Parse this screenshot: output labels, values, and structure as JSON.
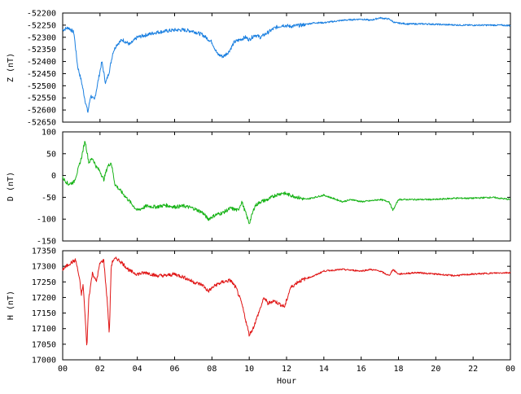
{
  "chart_data": [
    {
      "type": "line",
      "ylabel": "Z (nT)",
      "ylim": [
        -52650,
        -52200
      ],
      "yticks": [
        -52200,
        -52250,
        -52300,
        -52350,
        -52400,
        -52450,
        -52500,
        -52550,
        -52600,
        -52650
      ],
      "color": "#1a7fe0",
      "x": [
        0,
        0.3,
        0.6,
        0.8,
        1.0,
        1.2,
        1.35,
        1.5,
        1.7,
        1.9,
        2.1,
        2.3,
        2.5,
        2.7,
        2.9,
        3.2,
        3.6,
        4.0,
        4.5,
        5.0,
        5.5,
        6.0,
        6.5,
        7.0,
        7.5,
        8.0,
        8.3,
        8.6,
        8.9,
        9.2,
        9.5,
        9.8,
        10.0,
        10.3,
        10.6,
        11.0,
        11.4,
        11.8,
        12.2,
        12.8,
        13.5,
        14.0,
        15.0,
        16.0,
        16.5,
        17.0,
        17.5,
        17.8,
        18.5,
        19.5,
        20.5,
        21.5,
        22.5,
        23.5,
        24.0
      ],
      "y": [
        -52270,
        -52260,
        -52280,
        -52420,
        -52480,
        -52560,
        -52610,
        -52540,
        -52560,
        -52480,
        -52400,
        -52490,
        -52440,
        -52360,
        -52330,
        -52310,
        -52330,
        -52300,
        -52290,
        -52280,
        -52275,
        -52270,
        -52270,
        -52275,
        -52290,
        -52320,
        -52370,
        -52380,
        -52360,
        -52320,
        -52310,
        -52300,
        -52310,
        -52290,
        -52300,
        -52280,
        -52260,
        -52250,
        -52255,
        -52250,
        -52240,
        -52240,
        -52230,
        -52225,
        -52230,
        -52220,
        -52225,
        -52240,
        -52245,
        -52245,
        -52248,
        -52250,
        -52250,
        -52250,
        -52252
      ]
    },
    {
      "type": "line",
      "ylabel": "D (nT)",
      "ylim": [
        -150,
        100
      ],
      "yticks": [
        100,
        50,
        0,
        -50,
        -100,
        -150
      ],
      "color": "#17b317",
      "x": [
        0,
        0.3,
        0.6,
        0.8,
        1.0,
        1.2,
        1.4,
        1.6,
        1.8,
        2.0,
        2.2,
        2.4,
        2.6,
        2.8,
        3.0,
        3.3,
        3.6,
        4.0,
        4.5,
        5.0,
        5.5,
        6.0,
        6.5,
        7.0,
        7.5,
        7.8,
        8.2,
        8.6,
        9.0,
        9.4,
        9.6,
        9.8,
        10.0,
        10.3,
        10.6,
        11.0,
        11.4,
        11.8,
        12.2,
        12.6,
        13.0,
        13.5,
        14.0,
        15.0,
        15.5,
        16.0,
        16.5,
        17.0,
        17.5,
        17.7,
        18.0,
        19.0,
        20.0,
        21.0,
        22.0,
        23.0,
        24.0
      ],
      "y": [
        -5,
        -20,
        -15,
        10,
        40,
        80,
        30,
        40,
        20,
        10,
        -10,
        20,
        30,
        -20,
        -30,
        -45,
        -60,
        -80,
        -70,
        -72,
        -68,
        -72,
        -70,
        -75,
        -85,
        -100,
        -90,
        -85,
        -75,
        -80,
        -60,
        -85,
        -110,
        -70,
        -60,
        -55,
        -45,
        -40,
        -45,
        -50,
        -55,
        -50,
        -45,
        -60,
        -55,
        -60,
        -58,
        -55,
        -60,
        -80,
        -55,
        -55,
        -55,
        -52,
        -52,
        -50,
        -55
      ]
    },
    {
      "type": "line",
      "ylabel": "H (nT)",
      "xlabel": "Hour",
      "ylim": [
        17000,
        17350
      ],
      "yticks": [
        17350,
        17300,
        17250,
        17200,
        17150,
        17100,
        17050,
        17000
      ],
      "xticks": [
        "00",
        "02",
        "04",
        "06",
        "08",
        "10",
        "12",
        "14",
        "16",
        "18",
        "20",
        "22",
        "00"
      ],
      "xlim": [
        0,
        24
      ],
      "color": "#e01414",
      "x": [
        0,
        0.4,
        0.7,
        0.9,
        1.0,
        1.1,
        1.2,
        1.3,
        1.4,
        1.6,
        1.8,
        2.0,
        2.2,
        2.4,
        2.5,
        2.6,
        2.7,
        2.9,
        3.2,
        3.6,
        4.0,
        4.5,
        5.0,
        5.5,
        6.0,
        6.5,
        7.0,
        7.5,
        7.8,
        8.2,
        8.6,
        9.0,
        9.3,
        9.6,
        9.8,
        10.0,
        10.2,
        10.5,
        10.8,
        11.0,
        11.3,
        11.6,
        11.9,
        12.2,
        12.6,
        13.0,
        13.5,
        14.0,
        15.0,
        16.0,
        16.5,
        17.0,
        17.5,
        17.7,
        18.0,
        19.0,
        20.0,
        21.0,
        22.0,
        23.0,
        24.0
      ],
      "y": [
        17290,
        17310,
        17320,
        17260,
        17210,
        17240,
        17140,
        17040,
        17200,
        17280,
        17250,
        17310,
        17320,
        17180,
        17080,
        17300,
        17320,
        17325,
        17310,
        17285,
        17275,
        17280,
        17270,
        17270,
        17275,
        17265,
        17250,
        17240,
        17220,
        17240,
        17250,
        17255,
        17230,
        17180,
        17130,
        17080,
        17100,
        17150,
        17200,
        17180,
        17190,
        17180,
        17170,
        17230,
        17250,
        17260,
        17270,
        17285,
        17290,
        17285,
        17290,
        17285,
        17270,
        17290,
        17275,
        17280,
        17275,
        17270,
        17275,
        17278,
        17280
      ]
    }
  ]
}
